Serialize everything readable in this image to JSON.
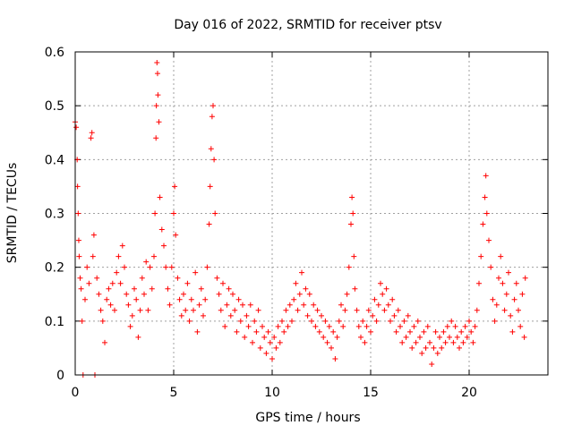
{
  "chart_data": {
    "type": "scatter",
    "title": "Day 016 of 2022, SRMTID for receiver ptsv",
    "xlabel": "GPS time / hours",
    "ylabel": "SRMTID / TECUs",
    "xlim": [
      0,
      24
    ],
    "ylim": [
      0,
      0.6
    ],
    "grid": true,
    "x_ticks": [
      0,
      5,
      10,
      15,
      20
    ],
    "x_tick_labels": [
      "0",
      "5",
      "10",
      "15",
      "20"
    ],
    "y_ticks": [
      0,
      0.1,
      0.2,
      0.3,
      0.4,
      0.5,
      0.6
    ],
    "y_tick_labels": [
      "0",
      "0.1",
      "0.2",
      "0.3",
      "0.4",
      "0.5",
      "0.6"
    ],
    "marker": "plus",
    "marker_color": "#ff0000",
    "series": [
      {
        "name": "SRMTID",
        "points": [
          [
            0.0,
            0.47
          ],
          [
            0.05,
            0.46
          ],
          [
            0.1,
            0.4
          ],
          [
            0.12,
            0.35
          ],
          [
            0.15,
            0.3
          ],
          [
            0.18,
            0.25
          ],
          [
            0.2,
            0.22
          ],
          [
            0.25,
            0.18
          ],
          [
            0.3,
            0.16
          ],
          [
            0.35,
            0.1
          ],
          [
            0.4,
            0.0
          ],
          [
            0.5,
            0.14
          ],
          [
            0.6,
            0.2
          ],
          [
            0.7,
            0.17
          ],
          [
            0.8,
            0.44
          ],
          [
            0.85,
            0.45
          ],
          [
            0.9,
            0.22
          ],
          [
            0.95,
            0.26
          ],
          [
            1.0,
            0.0
          ],
          [
            1.1,
            0.18
          ],
          [
            1.2,
            0.15
          ],
          [
            1.3,
            0.12
          ],
          [
            1.4,
            0.1
          ],
          [
            1.5,
            0.06
          ],
          [
            1.6,
            0.14
          ],
          [
            1.7,
            0.16
          ],
          [
            1.8,
            0.13
          ],
          [
            1.9,
            0.17
          ],
          [
            2.0,
            0.12
          ],
          [
            2.1,
            0.19
          ],
          [
            2.2,
            0.22
          ],
          [
            2.3,
            0.17
          ],
          [
            2.4,
            0.24
          ],
          [
            2.5,
            0.2
          ],
          [
            2.6,
            0.15
          ],
          [
            2.7,
            0.13
          ],
          [
            2.8,
            0.09
          ],
          [
            2.9,
            0.11
          ],
          [
            3.0,
            0.16
          ],
          [
            3.1,
            0.14
          ],
          [
            3.2,
            0.07
          ],
          [
            3.3,
            0.12
          ],
          [
            3.4,
            0.18
          ],
          [
            3.5,
            0.15
          ],
          [
            3.6,
            0.21
          ],
          [
            3.7,
            0.12
          ],
          [
            3.8,
            0.2
          ],
          [
            3.9,
            0.16
          ],
          [
            4.0,
            0.22
          ],
          [
            4.05,
            0.3
          ],
          [
            4.1,
            0.44
          ],
          [
            4.12,
            0.5
          ],
          [
            4.15,
            0.58
          ],
          [
            4.18,
            0.56
          ],
          [
            4.2,
            0.52
          ],
          [
            4.25,
            0.47
          ],
          [
            4.3,
            0.33
          ],
          [
            4.4,
            0.27
          ],
          [
            4.5,
            0.24
          ],
          [
            4.6,
            0.2
          ],
          [
            4.7,
            0.16
          ],
          [
            4.8,
            0.13
          ],
          [
            4.9,
            0.2
          ],
          [
            5.0,
            0.3
          ],
          [
            5.05,
            0.35
          ],
          [
            5.1,
            0.26
          ],
          [
            5.2,
            0.18
          ],
          [
            5.3,
            0.14
          ],
          [
            5.4,
            0.11
          ],
          [
            5.5,
            0.15
          ],
          [
            5.6,
            0.12
          ],
          [
            5.7,
            0.17
          ],
          [
            5.8,
            0.1
          ],
          [
            5.9,
            0.14
          ],
          [
            6.0,
            0.12
          ],
          [
            6.1,
            0.19
          ],
          [
            6.2,
            0.08
          ],
          [
            6.3,
            0.13
          ],
          [
            6.4,
            0.16
          ],
          [
            6.5,
            0.11
          ],
          [
            6.6,
            0.14
          ],
          [
            6.7,
            0.2
          ],
          [
            6.8,
            0.28
          ],
          [
            6.85,
            0.35
          ],
          [
            6.9,
            0.42
          ],
          [
            6.95,
            0.48
          ],
          [
            7.0,
            0.5
          ],
          [
            7.05,
            0.4
          ],
          [
            7.1,
            0.3
          ],
          [
            7.2,
            0.18
          ],
          [
            7.3,
            0.15
          ],
          [
            7.4,
            0.12
          ],
          [
            7.5,
            0.17
          ],
          [
            7.6,
            0.09
          ],
          [
            7.7,
            0.13
          ],
          [
            7.8,
            0.16
          ],
          [
            7.9,
            0.11
          ],
          [
            8.0,
            0.15
          ],
          [
            8.1,
            0.12
          ],
          [
            8.2,
            0.08
          ],
          [
            8.3,
            0.14
          ],
          [
            8.4,
            0.1
          ],
          [
            8.5,
            0.13
          ],
          [
            8.6,
            0.07
          ],
          [
            8.7,
            0.11
          ],
          [
            8.8,
            0.09
          ],
          [
            8.9,
            0.13
          ],
          [
            9.0,
            0.06
          ],
          [
            9.1,
            0.1
          ],
          [
            9.2,
            0.08
          ],
          [
            9.3,
            0.12
          ],
          [
            9.4,
            0.05
          ],
          [
            9.5,
            0.09
          ],
          [
            9.6,
            0.07
          ],
          [
            9.7,
            0.04
          ],
          [
            9.8,
            0.08
          ],
          [
            9.9,
            0.06
          ],
          [
            10.0,
            0.03
          ],
          [
            10.1,
            0.07
          ],
          [
            10.2,
            0.05
          ],
          [
            10.3,
            0.09
          ],
          [
            10.4,
            0.06
          ],
          [
            10.5,
            0.1
          ],
          [
            10.6,
            0.08
          ],
          [
            10.7,
            0.12
          ],
          [
            10.8,
            0.09
          ],
          [
            10.9,
            0.13
          ],
          [
            11.0,
            0.1
          ],
          [
            11.1,
            0.14
          ],
          [
            11.2,
            0.17
          ],
          [
            11.3,
            0.12
          ],
          [
            11.4,
            0.15
          ],
          [
            11.5,
            0.19
          ],
          [
            11.6,
            0.13
          ],
          [
            11.7,
            0.16
          ],
          [
            11.8,
            0.11
          ],
          [
            11.9,
            0.15
          ],
          [
            12.0,
            0.1
          ],
          [
            12.1,
            0.13
          ],
          [
            12.2,
            0.09
          ],
          [
            12.3,
            0.12
          ],
          [
            12.4,
            0.08
          ],
          [
            12.5,
            0.11
          ],
          [
            12.6,
            0.07
          ],
          [
            12.7,
            0.1
          ],
          [
            12.8,
            0.06
          ],
          [
            12.9,
            0.09
          ],
          [
            13.0,
            0.05
          ],
          [
            13.1,
            0.08
          ],
          [
            13.2,
            0.03
          ],
          [
            13.3,
            0.07
          ],
          [
            13.4,
            0.1
          ],
          [
            13.5,
            0.13
          ],
          [
            13.6,
            0.09
          ],
          [
            13.7,
            0.12
          ],
          [
            13.8,
            0.15
          ],
          [
            13.9,
            0.2
          ],
          [
            14.0,
            0.28
          ],
          [
            14.05,
            0.33
          ],
          [
            14.1,
            0.3
          ],
          [
            14.15,
            0.22
          ],
          [
            14.2,
            0.16
          ],
          [
            14.3,
            0.12
          ],
          [
            14.4,
            0.09
          ],
          [
            14.5,
            0.07
          ],
          [
            14.6,
            0.1
          ],
          [
            14.7,
            0.06
          ],
          [
            14.8,
            0.09
          ],
          [
            14.9,
            0.12
          ],
          [
            15.0,
            0.08
          ],
          [
            15.1,
            0.11
          ],
          [
            15.2,
            0.14
          ],
          [
            15.3,
            0.1
          ],
          [
            15.4,
            0.13
          ],
          [
            15.5,
            0.17
          ],
          [
            15.6,
            0.15
          ],
          [
            15.7,
            0.12
          ],
          [
            15.8,
            0.16
          ],
          [
            15.9,
            0.13
          ],
          [
            16.0,
            0.1
          ],
          [
            16.1,
            0.14
          ],
          [
            16.2,
            0.11
          ],
          [
            16.3,
            0.08
          ],
          [
            16.4,
            0.12
          ],
          [
            16.5,
            0.09
          ],
          [
            16.6,
            0.06
          ],
          [
            16.7,
            0.1
          ],
          [
            16.8,
            0.07
          ],
          [
            16.9,
            0.11
          ],
          [
            17.0,
            0.08
          ],
          [
            17.1,
            0.05
          ],
          [
            17.2,
            0.09
          ],
          [
            17.3,
            0.06
          ],
          [
            17.4,
            0.1
          ],
          [
            17.5,
            0.07
          ],
          [
            17.6,
            0.04
          ],
          [
            17.7,
            0.08
          ],
          [
            17.8,
            0.05
          ],
          [
            17.9,
            0.09
          ],
          [
            18.0,
            0.06
          ],
          [
            18.1,
            0.02
          ],
          [
            18.2,
            0.05
          ],
          [
            18.3,
            0.08
          ],
          [
            18.4,
            0.04
          ],
          [
            18.5,
            0.07
          ],
          [
            18.6,
            0.05
          ],
          [
            18.7,
            0.08
          ],
          [
            18.8,
            0.06
          ],
          [
            18.9,
            0.09
          ],
          [
            19.0,
            0.07
          ],
          [
            19.1,
            0.1
          ],
          [
            19.2,
            0.06
          ],
          [
            19.3,
            0.09
          ],
          [
            19.4,
            0.07
          ],
          [
            19.5,
            0.05
          ],
          [
            19.6,
            0.08
          ],
          [
            19.7,
            0.06
          ],
          [
            19.8,
            0.09
          ],
          [
            19.9,
            0.07
          ],
          [
            20.0,
            0.1
          ],
          [
            20.1,
            0.08
          ],
          [
            20.2,
            0.06
          ],
          [
            20.3,
            0.09
          ],
          [
            20.4,
            0.12
          ],
          [
            20.5,
            0.17
          ],
          [
            20.6,
            0.22
          ],
          [
            20.7,
            0.28
          ],
          [
            20.8,
            0.33
          ],
          [
            20.85,
            0.37
          ],
          [
            20.9,
            0.3
          ],
          [
            21.0,
            0.25
          ],
          [
            21.1,
            0.2
          ],
          [
            21.2,
            0.14
          ],
          [
            21.3,
            0.1
          ],
          [
            21.4,
            0.13
          ],
          [
            21.5,
            0.18
          ],
          [
            21.6,
            0.22
          ],
          [
            21.7,
            0.17
          ],
          [
            21.8,
            0.12
          ],
          [
            21.9,
            0.15
          ],
          [
            22.0,
            0.19
          ],
          [
            22.1,
            0.11
          ],
          [
            22.2,
            0.08
          ],
          [
            22.3,
            0.14
          ],
          [
            22.4,
            0.17
          ],
          [
            22.5,
            0.12
          ],
          [
            22.6,
            0.09
          ],
          [
            22.7,
            0.15
          ],
          [
            22.8,
            0.07
          ],
          [
            22.85,
            0.18
          ]
        ]
      }
    ]
  }
}
